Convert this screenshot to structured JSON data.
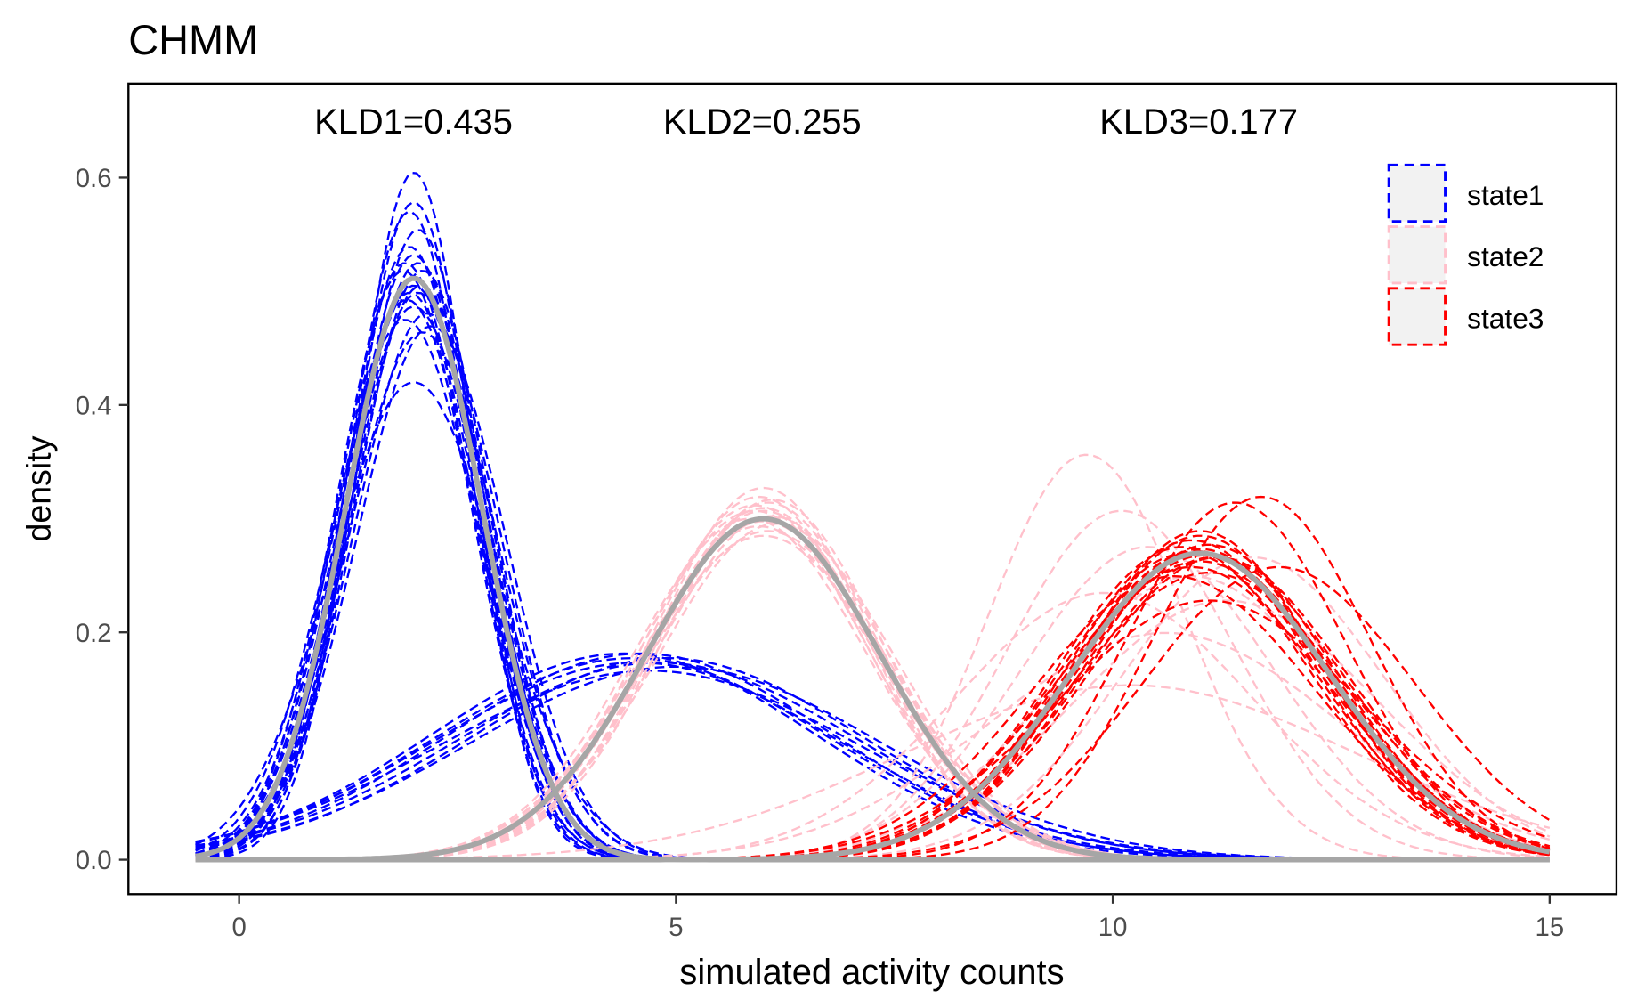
{
  "chart_data": {
    "type": "line",
    "title": "CHMM",
    "xlabel": "simulated activity counts",
    "ylabel": "density",
    "xlim": [
      -0.75,
      15.5
    ],
    "ylim": [
      -0.03,
      0.68
    ],
    "x_domain": [
      -0.5,
      15
    ],
    "xticks": [
      0,
      5,
      10,
      15
    ],
    "xtick_labels": [
      "0",
      "5",
      "10",
      "15"
    ],
    "yticks": [
      0.0,
      0.2,
      0.4,
      0.6
    ],
    "ytick_labels": [
      "0.0",
      "0.2",
      "0.4",
      "0.6"
    ],
    "grid": false,
    "legend_position": "top-right",
    "annotations": [
      {
        "text": "KLD1=0.435",
        "x": 2.0
      },
      {
        "text": "KLD2=0.255",
        "x": 6.0
      },
      {
        "text": "KLD3=0.177",
        "x": 11.0
      }
    ],
    "true_density": {
      "color": "#a6a6a6",
      "curves": [
        {
          "state": "state1",
          "distribution": "normal",
          "mean": 2.0,
          "sd": 0.78
        },
        {
          "state": "state2",
          "distribution": "normal",
          "mean": 6.0,
          "sd": 1.33
        },
        {
          "state": "state3",
          "distribution": "normal",
          "mean": 11.0,
          "sd": 1.48
        }
      ]
    },
    "series": [
      {
        "name": "state1",
        "color": "#0000ff",
        "line": "dashed",
        "replicates": [
          [
            2.0,
            0.66
          ],
          [
            1.95,
            0.7
          ],
          [
            2.05,
            0.72
          ],
          [
            2.0,
            0.75
          ],
          [
            1.9,
            0.76
          ],
          [
            2.1,
            0.77
          ],
          [
            2.0,
            0.78
          ],
          [
            1.95,
            0.8
          ],
          [
            2.05,
            0.8
          ],
          [
            2.0,
            0.82
          ],
          [
            1.9,
            0.84
          ],
          [
            2.1,
            0.86
          ],
          [
            2.0,
            0.95
          ],
          [
            1.95,
            0.74
          ],
          [
            2.05,
            0.76
          ],
          [
            2.0,
            0.79
          ],
          [
            1.92,
            0.81
          ],
          [
            2.08,
            0.79
          ],
          [
            2.15,
            0.83
          ],
          [
            1.88,
            0.77
          ],
          [
            2.2,
            0.85
          ],
          [
            2.0,
            0.69
          ],
          [
            4.4,
            2.2
          ],
          [
            4.5,
            2.25
          ],
          [
            4.6,
            2.2
          ],
          [
            4.8,
            2.3
          ],
          [
            4.9,
            2.25
          ],
          [
            5.0,
            2.35
          ],
          [
            4.7,
            2.4
          ],
          [
            4.55,
            2.3
          ]
        ]
      },
      {
        "name": "state2",
        "color": "#ffc0cb",
        "line": "dashed",
        "replicates": [
          [
            6.0,
            1.22
          ],
          [
            5.95,
            1.25
          ],
          [
            6.05,
            1.27
          ],
          [
            6.0,
            1.3
          ],
          [
            5.9,
            1.3
          ],
          [
            6.1,
            1.32
          ],
          [
            6.0,
            1.34
          ],
          [
            5.95,
            1.36
          ],
          [
            6.05,
            1.38
          ],
          [
            6.0,
            1.4
          ],
          [
            5.9,
            1.28
          ],
          [
            6.1,
            1.26
          ],
          [
            5.85,
            1.33
          ],
          [
            6.15,
            1.35
          ],
          [
            6.0,
            1.29
          ],
          [
            9.7,
            1.12
          ],
          [
            10.1,
            1.3
          ],
          [
            10.4,
            1.45
          ],
          [
            10.9,
            1.6
          ],
          [
            11.3,
            1.75
          ],
          [
            9.9,
            1.7
          ],
          [
            10.6,
            2.0
          ],
          [
            11.6,
            1.5
          ],
          [
            10.2,
            2.6
          ]
        ]
      },
      {
        "name": "state3",
        "color": "#ff0000",
        "line": "dashed",
        "replicates": [
          [
            11.0,
            1.4
          ],
          [
            10.9,
            1.42
          ],
          [
            11.1,
            1.44
          ],
          [
            11.0,
            1.46
          ],
          [
            10.85,
            1.48
          ],
          [
            11.15,
            1.5
          ],
          [
            11.0,
            1.52
          ],
          [
            10.9,
            1.55
          ],
          [
            11.1,
            1.58
          ],
          [
            11.0,
            1.38
          ],
          [
            10.95,
            1.47
          ],
          [
            11.05,
            1.49
          ],
          [
            10.8,
            1.45
          ],
          [
            11.2,
            1.5
          ],
          [
            11.4,
            1.27
          ],
          [
            11.7,
            1.25
          ],
          [
            11.1,
            1.75
          ],
          [
            10.7,
            1.6
          ],
          [
            11.9,
            1.55
          ]
        ]
      }
    ]
  }
}
